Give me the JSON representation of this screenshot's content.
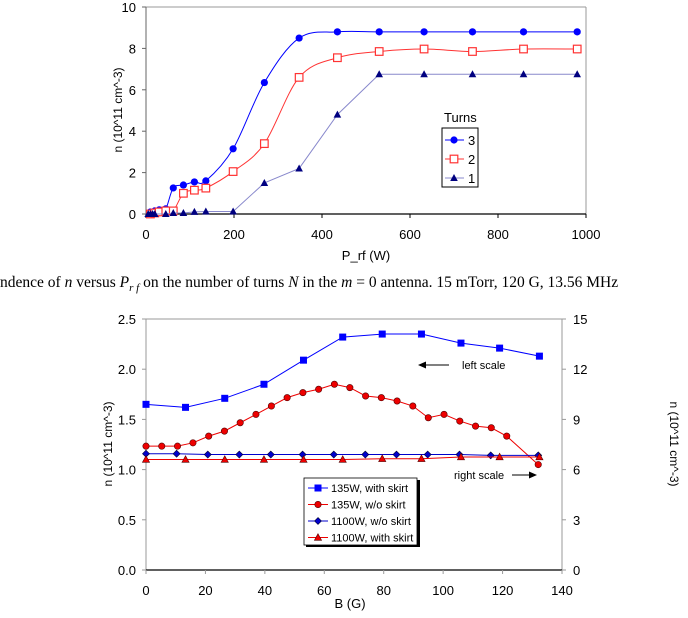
{
  "caption": {
    "pre": "ndence of ",
    "n": "n",
    "mid1": " versus ",
    "P": "P",
    "sub": "r f",
    "mid2": " on the number of turns ",
    "N": "N",
    "mid3": " in the ",
    "m": "m",
    "post": " = 0 antenna.  15 mTorr, 120 G, 13.56 MHz"
  },
  "chart_data": [
    {
      "type": "line",
      "xlabel": "P_rf (W)",
      "ylabel": "n (10^11 cm^-3)",
      "xlim": [
        0,
        1000
      ],
      "ylim": [
        0,
        10
      ],
      "xticks": [
        0,
        200,
        400,
        600,
        800,
        1000
      ],
      "yticks": [
        0,
        2,
        4,
        6,
        8,
        10
      ],
      "grid": false,
      "legend": {
        "title": "Turns",
        "placement": "right"
      },
      "series": [
        {
          "name": "3",
          "color": "#0000ff",
          "marker": "circle-filled",
          "smooth": true,
          "x": [
            10,
            20,
            30,
            45,
            62,
            85,
            110,
            136,
            198,
            269,
            348,
            435,
            530,
            632,
            742,
            858,
            980
          ],
          "y": [
            0.1,
            0.15,
            0.2,
            0.25,
            1.26,
            1.4,
            1.55,
            1.6,
            3.15,
            6.35,
            8.5,
            8.8,
            8.8,
            8.8,
            8.8,
            8.8,
            8.8
          ]
        },
        {
          "name": "2",
          "color": "#ff3333",
          "marker": "square-open",
          "smooth": true,
          "x": [
            10,
            20,
            30,
            45,
            62,
            85,
            110,
            136,
            198,
            269,
            348,
            435,
            530,
            632,
            742,
            858,
            980
          ],
          "y": [
            0,
            0.05,
            0.1,
            0.15,
            0.15,
            1.0,
            1.15,
            1.25,
            2.05,
            3.4,
            6.6,
            7.55,
            7.85,
            7.97,
            7.85,
            7.97,
            7.97
          ]
        },
        {
          "name": "1",
          "color": "#000080",
          "line_color": "#8888cc",
          "marker": "triangle-filled",
          "smooth": false,
          "x": [
            5,
            10,
            15,
            20,
            45,
            62,
            85,
            110,
            136,
            198,
            269,
            348,
            435,
            530,
            632,
            742,
            858,
            980
          ],
          "y": [
            0,
            0,
            0,
            0,
            0,
            0.05,
            0.05,
            0.1,
            0.12,
            0.12,
            1.5,
            2.2,
            4.8,
            6.75,
            6.75,
            6.75,
            6.75,
            6.75
          ]
        }
      ]
    },
    {
      "type": "line",
      "xlabel": "B (G)",
      "ylabel": "n (10^11 cm^-3)",
      "ylabel_right": "n (10^11 cm^-3)",
      "xlim": [
        0,
        140
      ],
      "ylim": [
        0,
        2.5
      ],
      "ylim_right": [
        0,
        15
      ],
      "xticks": [
        0,
        20,
        40,
        60,
        80,
        100,
        120,
        140
      ],
      "yticks": [
        "0.0",
        "0.5",
        "1.0",
        "1.5",
        "2.0",
        "2.5"
      ],
      "yticks_right": [
        0,
        3,
        6,
        9,
        12,
        15
      ],
      "grid": false,
      "legend": {
        "placement": "bottom-center"
      },
      "annotations": [
        {
          "text": "left scale",
          "arrow": "left"
        },
        {
          "text": "right scale",
          "arrow": "right"
        }
      ],
      "series": [
        {
          "name": "135W, with skirt",
          "axis": "left",
          "color": "#0000ff",
          "marker": "square",
          "x": [
            0,
            13.3,
            26.5,
            39.7,
            53,
            66.2,
            79.5,
            92.7,
            106,
            119,
            132.4
          ],
          "y": [
            1.65,
            1.62,
            1.71,
            1.85,
            2.09,
            2.32,
            2.35,
            2.35,
            2.26,
            2.21,
            2.13
          ]
        },
        {
          "name": "135W, w/o skirt",
          "axis": "right",
          "color": "#ee0000",
          "marker": "circle",
          "x": [
            0,
            5.3,
            10.6,
            15.8,
            21.1,
            26.4,
            31.7,
            37,
            42.2,
            47.5,
            52.8,
            58.1,
            63.4,
            68.6,
            73.9,
            79.2,
            84.5,
            89.8,
            95,
            100.3,
            105.6,
            110.9,
            116.2,
            121.4,
            132
          ],
          "y": [
            7.4,
            7.4,
            7.4,
            7.6,
            8.0,
            8.3,
            8.8,
            9.3,
            9.8,
            10.3,
            10.6,
            10.8,
            11.1,
            10.9,
            10.4,
            10.3,
            10.1,
            9.8,
            9.1,
            9.3,
            8.9,
            8.6,
            8.5,
            8.0,
            6.3
          ]
        },
        {
          "name": "1100W, w/o skirt",
          "axis": "right",
          "color": "#0000cc",
          "marker": "diamond",
          "x": [
            0,
            10.3,
            20.8,
            31.4,
            42,
            52.7,
            63.2,
            73.8,
            84.3,
            94.8,
            105.5,
            116,
            132
          ],
          "y": [
            6.95,
            6.95,
            6.9,
            6.9,
            6.9,
            6.9,
            6.9,
            6.9,
            6.9,
            6.9,
            6.9,
            6.85,
            6.85
          ]
        },
        {
          "name": "1100W, with skirt",
          "axis": "right",
          "color": "#ee0000",
          "marker": "triangle",
          "x": [
            0,
            13.3,
            26.5,
            39.7,
            53,
            66.2,
            79.5,
            92.7,
            106,
            119,
            132.4
          ],
          "y": [
            6.6,
            6.6,
            6.6,
            6.6,
            6.6,
            6.6,
            6.65,
            6.65,
            6.75,
            6.75,
            6.75
          ]
        }
      ]
    }
  ]
}
